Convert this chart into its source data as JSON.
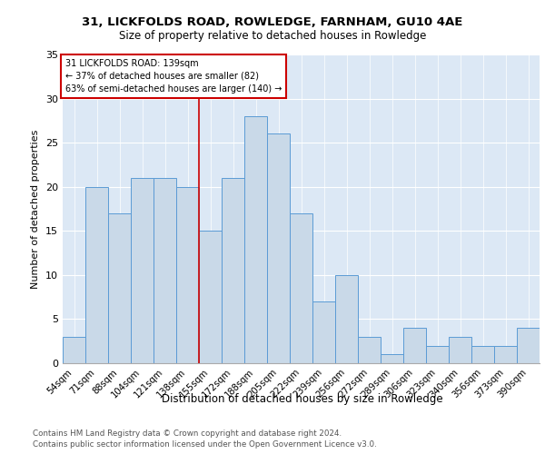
{
  "title1": "31, LICKFOLDS ROAD, ROWLEDGE, FARNHAM, GU10 4AE",
  "title2": "Size of property relative to detached houses in Rowledge",
  "xlabel": "Distribution of detached houses by size in Rowledge",
  "ylabel": "Number of detached properties",
  "footnote1": "Contains HM Land Registry data © Crown copyright and database right 2024.",
  "footnote2": "Contains public sector information licensed under the Open Government Licence v3.0.",
  "categories": [
    "54sqm",
    "71sqm",
    "88sqm",
    "104sqm",
    "121sqm",
    "138sqm",
    "155sqm",
    "172sqm",
    "188sqm",
    "205sqm",
    "222sqm",
    "239sqm",
    "256sqm",
    "272sqm",
    "289sqm",
    "306sqm",
    "323sqm",
    "340sqm",
    "356sqm",
    "373sqm",
    "390sqm"
  ],
  "values": [
    3,
    20,
    17,
    21,
    21,
    20,
    15,
    21,
    28,
    26,
    17,
    7,
    10,
    3,
    1,
    4,
    2,
    3,
    2,
    2,
    4
  ],
  "bar_color": "#c9d9e8",
  "bar_edge_color": "#5b9bd5",
  "vline_x": 5.5,
  "vline_color": "#cc0000",
  "annotation_title": "31 LICKFOLDS ROAD: 139sqm",
  "annotation_line1": "← 37% of detached houses are smaller (82)",
  "annotation_line2": "63% of semi-detached houses are larger (140) →",
  "annotation_box_color": "#cc0000",
  "ylim": [
    0,
    35
  ],
  "yticks": [
    0,
    5,
    10,
    15,
    20,
    25,
    30,
    35
  ],
  "plot_bg_color": "#dce8f5"
}
